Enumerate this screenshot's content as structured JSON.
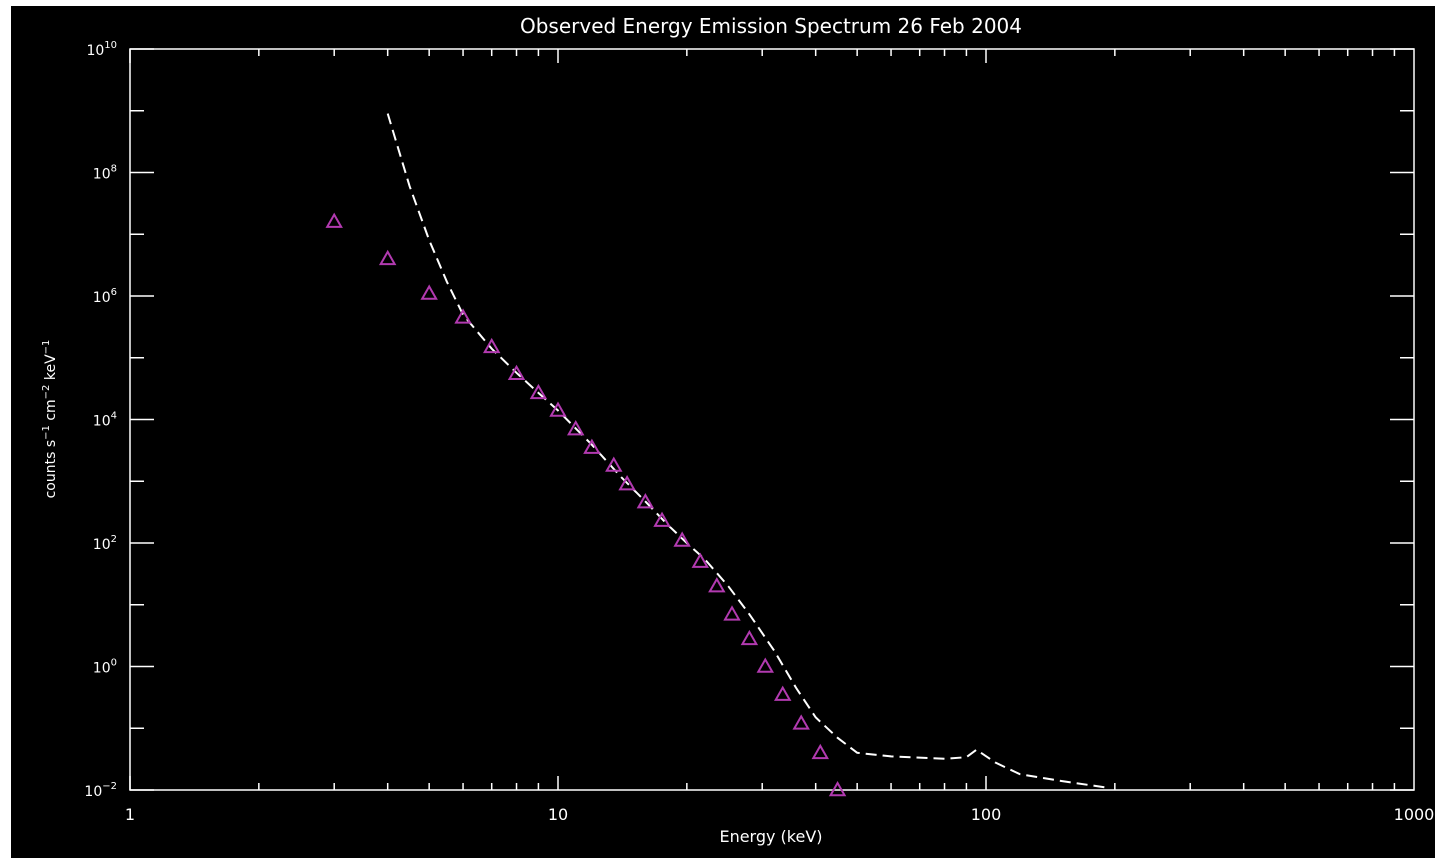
{
  "chart_data": {
    "type": "scatter",
    "title": "Observed Energy Emission Spectrum 26 Feb 2004",
    "xlabel": "Energy (keV)",
    "ylabel": "counts s^-1 cm^-2 keV^-1",
    "ylabel_parts": {
      "base": "counts s",
      "exp1": "−1",
      "mid1": " cm",
      "exp2": "−2",
      "mid2": " keV",
      "exp3": "−1"
    },
    "x_scale": "log",
    "y_scale": "log",
    "xlim": [
      1,
      1000
    ],
    "ylim": [
      0.01,
      10000000000
    ],
    "x_ticks": [
      {
        "value": 1,
        "label": "1"
      },
      {
        "value": 10,
        "label": "10"
      },
      {
        "value": 100,
        "label": "100"
      },
      {
        "value": 1000,
        "label": "1000"
      }
    ],
    "y_ticks": [
      {
        "value": 0.01,
        "base": "10",
        "exp": "−2"
      },
      {
        "value": 1,
        "base": "10",
        "exp": "0"
      },
      {
        "value": 100,
        "base": "10",
        "exp": "2"
      },
      {
        "value": 10000,
        "base": "10",
        "exp": "4"
      },
      {
        "value": 1000000,
        "base": "10",
        "exp": "6"
      },
      {
        "value": 100000000,
        "base": "10",
        "exp": "8"
      },
      {
        "value": 10000000000,
        "base": "10",
        "exp": "10"
      }
    ],
    "grid": false,
    "background": "#000000",
    "foreground": "#ffffff",
    "series": [
      {
        "kind": "scatter",
        "marker": "triangle",
        "color": "#b23ab0",
        "x": [
          3.0,
          4.0,
          5.0,
          6.0,
          7.0,
          8.0,
          9.0,
          10.0,
          11.0,
          12.0,
          13.5,
          14.5,
          16.0,
          17.5,
          19.5,
          21.5,
          23.5,
          25.5,
          28.0,
          30.5,
          33.5,
          37.0,
          41.0,
          45.0
        ],
        "y": [
          16000000.0,
          4000000.0,
          1100000.0,
          450000.0,
          150000.0,
          55000.0,
          27000.0,
          14000.0,
          7000.0,
          3500.0,
          1800.0,
          900.0,
          460.0,
          230.0,
          110.0,
          50.0,
          20.0,
          7.0,
          2.8,
          1.0,
          0.35,
          0.12,
          0.04,
          0.01
        ]
      },
      {
        "kind": "line",
        "style": "dashed",
        "color": "#ffffff",
        "x": [
          4.0,
          4.5,
          5.0,
          5.5,
          6.0,
          7.0,
          8.0,
          9.0,
          10.0,
          12.0,
          14.0,
          16.0,
          18.0,
          20.0,
          22.0,
          25.0,
          28.0,
          32.0,
          36.0,
          40.0,
          45.0,
          50.0,
          60.0,
          80.0,
          90.0,
          95.0,
          105.0,
          120.0,
          150.0,
          190.0
        ],
        "y": [
          900000000.0,
          60000000.0,
          8000000.0,
          1700000.0,
          500000.0,
          140000.0,
          57000.0,
          27000.0,
          14000.0,
          3900.0,
          1200.0,
          470.0,
          200.0,
          100.0,
          55.0,
          20.0,
          7.0,
          1.8,
          0.45,
          0.15,
          0.07,
          0.04,
          0.035,
          0.032,
          0.034,
          0.045,
          0.028,
          0.018,
          0.014,
          0.011
        ]
      }
    ]
  }
}
